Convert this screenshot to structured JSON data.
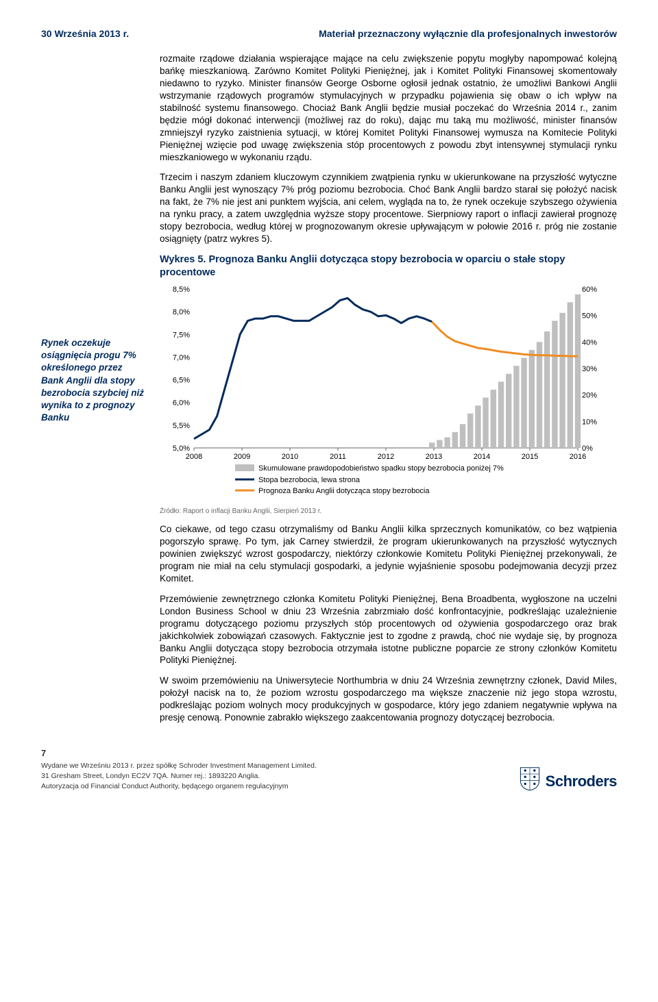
{
  "header": {
    "date": "30 Września 2013 r.",
    "disclaimer": "Materiał przeznaczony wyłącznie dla profesjonalnych inwestorów"
  },
  "sidebar_note": "Rynek oczekuje osiągnięcia progu 7% określonego przez Bank Anglii dla stopy bezrobocia szybciej niż wynika to z prognozy Banku",
  "paragraphs": {
    "p1": "rozmaite rządowe działania wspierające mające na celu zwiększenie popytu mogłyby napompować kolejną bańkę mieszkaniową. Zarówno Komitet Polityki Pieniężnej, jak i Komitet Polityki Finansowej skomentowały niedawno to ryzyko. Minister finansów George Osborne ogłosił jednak ostatnio, że umożliwi Bankowi Anglii wstrzymanie rządowych programów stymulacyjnych w przypadku pojawienia się obaw o ich wpływ na stabilność systemu finansowego. Chociaż Bank Anglii będzie musiał poczekać do Września 2014 r., zanim będzie mógł dokonać interwencji (możliwej raz do roku), dając mu taką mu możliwość, minister finansów zmniejszył ryzyko zaistnienia sytuacji, w której Komitet Polityki Finansowej wymusza na Komitecie Polityki Pieniężnej wzięcie pod uwagę zwiększenia stóp procentowych z powodu zbyt intensywnej stymulacji rynku mieszkaniowego w wykonaniu rządu.",
    "p2": "Trzecim i naszym zdaniem kluczowym czynnikiem zwątpienia rynku w ukierunkowane na przyszłość wytyczne Banku Anglii jest wynoszący 7% próg poziomu bezrobocia. Choć Bank Anglii bardzo starał się położyć nacisk na fakt, że 7% nie jest ani punktem wyjścia, ani celem, wygląda na to, że rynek oczekuje szybszego ożywienia na rynku pracy, a zatem uwzględnia wyższe stopy procentowe. Sierpniowy raport o inflacji zawierał prognozę stopy bezrobocia, według której w prognozowanym okresie upływającym w połowie 2016 r. próg nie zostanie osiągnięty (patrz wykres 5).",
    "p3": "Co ciekawe, od tego czasu otrzymaliśmy od Banku Anglii kilka sprzecznych komunikatów, co bez wątpienia pogorszyło sprawę. Po tym, jak Carney stwierdził, że program ukierunkowanych na przyszłość wytycznych powinien zwiększyć wzrost gospodarczy, niektórzy członkowie Komitetu Polityki Pieniężnej przekonywali, że program nie miał na celu stymulacji gospodarki, a jedynie wyjaśnienie sposobu podejmowania decyzji przez Komitet.",
    "p4": "Przemówienie zewnętrznego członka Komitetu Polityki Pieniężnej, Bena Broadbenta, wygłoszone na uczelni London Business School w dniu 23 Września zabrzmiało dość konfrontacyjnie, podkreślając uzależnienie programu dotyczącego poziomu przyszłych stóp procentowych od ożywienia gospodarczego oraz brak jakichkolwiek zobowiązań czasowych. Faktycznie jest to zgodne z prawdą, choć nie wydaje się, by prognoza Banku Anglii dotycząca stopy bezrobocia otrzymała istotne publiczne poparcie ze strony członków Komitetu Polityki Pieniężnej.",
    "p5": "W swoim przemówieniu na Uniwersytecie Northumbria w dniu 24 Września zewnętrzny członek, David Miles, położył nacisk na to, że poziom wzrostu gospodarczego ma większe znaczenie niż jego stopa wzrostu, podkreślając poziom wolnych mocy produkcyjnych w gospodarce, który jego zdaniem negatywnie wpływa na presję cenową. Ponownie zabrakło większego zaakcentowania prognozy dotyczącej bezrobocia."
  },
  "chart": {
    "title": "Wykres 5. Prognoza Banku Anglii dotycząca stopy bezrobocia w oparciu o stałe stopy procentowe",
    "source": "Źródło: Raport o inflacji Banku Anglii, Sierpień 2013 r.",
    "x_labels": [
      "2008",
      "2009",
      "2010",
      "2011",
      "2012",
      "2013",
      "2014",
      "2015",
      "2016"
    ],
    "left_axis": {
      "min": 5.0,
      "max": 8.5,
      "step": 0.5,
      "ticks": [
        "8,5%",
        "8,0%",
        "7,5%",
        "7,0%",
        "6,5%",
        "6,0%",
        "5,5%",
        "5,0%"
      ]
    },
    "right_axis": {
      "min": 0,
      "max": 60,
      "step": 10,
      "ticks": [
        "60%",
        "50%",
        "40%",
        "30%",
        "20%",
        "10%",
        "0%"
      ]
    },
    "unemployment_color": "#002a5c",
    "forecast_color": "#f08c22",
    "bars_color": "#bfbfbf",
    "bg_color": "#ffffff",
    "axis_color": "#666666",
    "unemployment_line": [
      [
        0,
        5.2
      ],
      [
        1,
        5.3
      ],
      [
        2,
        5.4
      ],
      [
        3,
        5.7
      ],
      [
        4,
        6.3
      ],
      [
        5,
        6.9
      ],
      [
        6,
        7.5
      ],
      [
        7,
        7.8
      ],
      [
        8,
        7.85
      ],
      [
        9,
        7.85
      ],
      [
        10,
        7.9
      ],
      [
        11,
        7.9
      ],
      [
        12,
        7.85
      ],
      [
        13,
        7.8
      ],
      [
        14,
        7.8
      ],
      [
        15,
        7.8
      ],
      [
        16,
        7.9
      ],
      [
        17,
        8.0
      ],
      [
        18,
        8.1
      ],
      [
        19,
        8.25
      ],
      [
        20,
        8.3
      ],
      [
        21,
        8.15
      ],
      [
        22,
        8.05
      ],
      [
        23,
        8.0
      ],
      [
        24,
        7.9
      ],
      [
        25,
        7.92
      ],
      [
        26,
        7.85
      ],
      [
        27,
        7.75
      ],
      [
        28,
        7.85
      ],
      [
        29,
        7.9
      ],
      [
        30,
        7.85
      ],
      [
        31,
        7.78
      ]
    ],
    "forecast_line": [
      [
        31,
        7.78
      ],
      [
        32,
        7.6
      ],
      [
        33,
        7.45
      ],
      [
        34,
        7.35
      ],
      [
        35,
        7.3
      ],
      [
        36,
        7.25
      ],
      [
        37,
        7.2
      ],
      [
        38,
        7.18
      ],
      [
        39,
        7.15
      ],
      [
        40,
        7.12
      ],
      [
        41,
        7.1
      ],
      [
        42,
        7.08
      ],
      [
        43,
        7.06
      ],
      [
        44,
        7.05
      ],
      [
        45,
        7.04
      ],
      [
        46,
        7.04
      ],
      [
        47,
        7.03
      ],
      [
        48,
        7.03
      ],
      [
        49,
        7.02
      ],
      [
        50,
        7.02
      ]
    ],
    "bars": [
      [
        30,
        0
      ],
      [
        31,
        2
      ],
      [
        32,
        3
      ],
      [
        33,
        4
      ],
      [
        34,
        6
      ],
      [
        35,
        9
      ],
      [
        36,
        13
      ],
      [
        37,
        16
      ],
      [
        38,
        19
      ],
      [
        39,
        22
      ],
      [
        40,
        25
      ],
      [
        41,
        28
      ],
      [
        42,
        31
      ],
      [
        43,
        34
      ],
      [
        44,
        37
      ],
      [
        45,
        40
      ],
      [
        46,
        44
      ],
      [
        47,
        48
      ],
      [
        48,
        51
      ],
      [
        49,
        55
      ],
      [
        50,
        58
      ]
    ],
    "legend": {
      "bars": "Skumulowane prawdopodobieństwo spadku stopy bezrobocia poniżej 7%",
      "line1": "Stopa bezrobocia, lewa strona",
      "line2": "Prognoza Banku Anglii dotycząca stopy bezrobocia"
    }
  },
  "footer": {
    "page": "7",
    "line1": "Wydane we Wrześniu 2013 r. przez spółkę Schroder Investment Management Limited.",
    "line2": "31 Gresham Street, Londyn EC2V 7QA. Numer rej.: 1893220 Anglia.",
    "line3": "Autoryzacja od Financial Conduct Authority, będącego organem regulacyjnym",
    "logo_text": "Schroders"
  }
}
